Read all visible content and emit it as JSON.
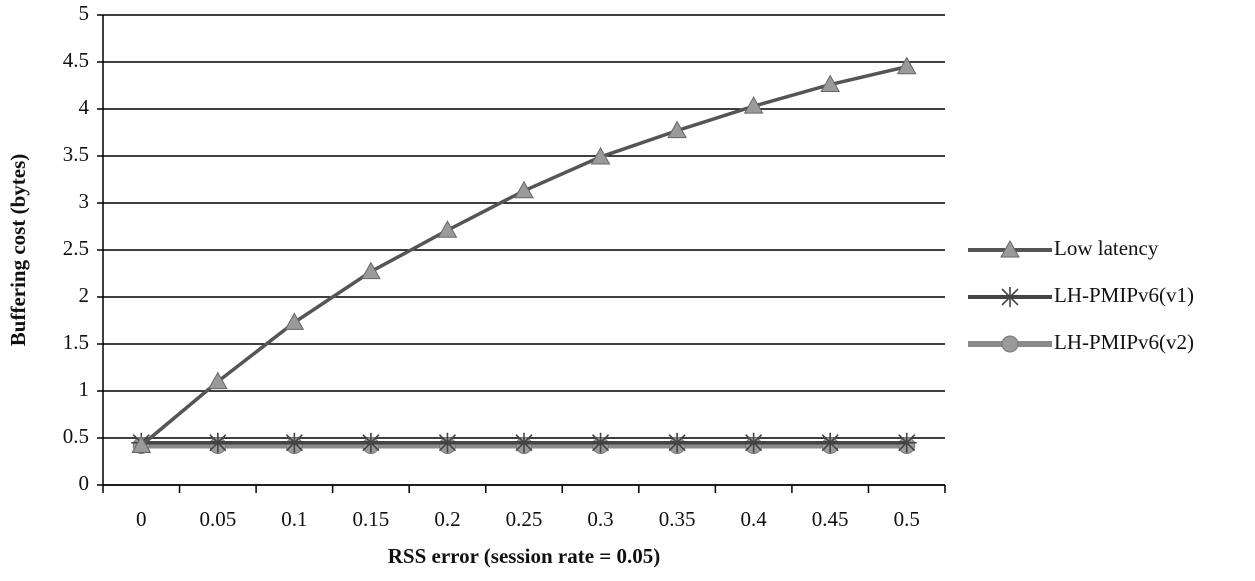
{
  "chart_data": {
    "type": "line",
    "xlabel": "RSS error (session rate = 0.05)",
    "ylabel": "Buffering cost (bytes)",
    "categories": [
      "0",
      "0.05",
      "0.1",
      "0.15",
      "0.2",
      "0.25",
      "0.3",
      "0.35",
      "0.4",
      "0.45",
      "0.5"
    ],
    "series": [
      {
        "name": "Low latency",
        "color": "#555555",
        "marker": "triangle",
        "values": [
          0.42,
          1.1,
          1.73,
          2.27,
          2.71,
          3.13,
          3.49,
          3.77,
          4.03,
          4.26,
          4.45
        ]
      },
      {
        "name": "LH-PMIPv6(v1)",
        "color": "#444444",
        "marker": "asterisk",
        "values": [
          0.45,
          0.45,
          0.45,
          0.45,
          0.45,
          0.45,
          0.45,
          0.45,
          0.45,
          0.45,
          0.45
        ]
      },
      {
        "name": "LH-PMIPv6(v2)",
        "color": "#8a8a8a",
        "marker": "circle",
        "values": [
          0.42,
          0.42,
          0.42,
          0.42,
          0.42,
          0.42,
          0.42,
          0.42,
          0.42,
          0.42,
          0.42
        ]
      }
    ],
    "ylim": [
      0,
      5
    ],
    "yticks": [
      0,
      0.5,
      1,
      1.5,
      2,
      2.5,
      3,
      3.5,
      4,
      4.5,
      5
    ],
    "grid": true,
    "legend": "right"
  }
}
